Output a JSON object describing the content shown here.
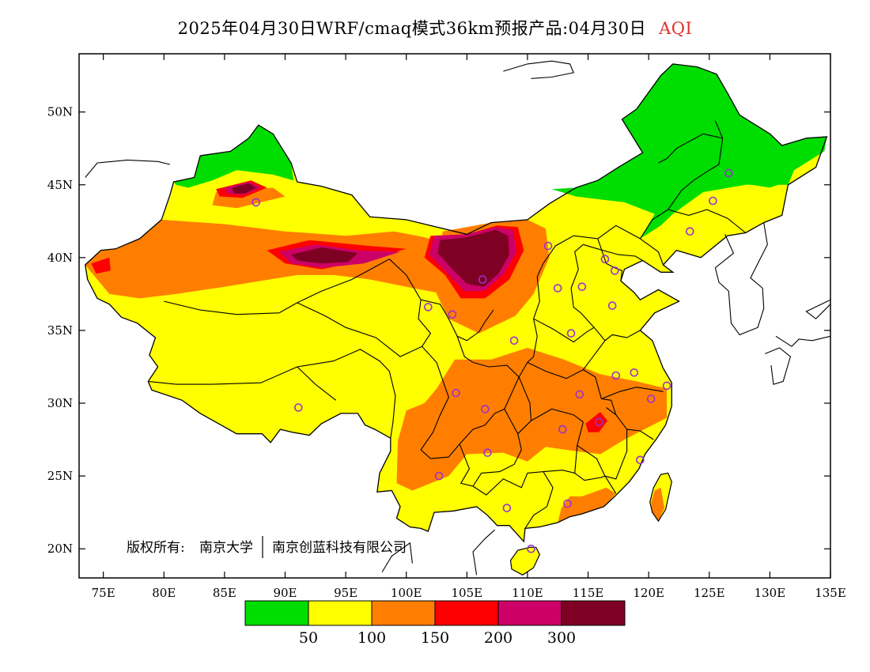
{
  "title": {
    "text": "2025年04月30日WRF/cmaq模式36km预报产品:04月30日",
    "variable": "AQI",
    "variable_color": "#e0302c"
  },
  "copyright": {
    "prefix": "版权所有:",
    "org1": "南京大学",
    "org2": "南京创蓝科技有限公司"
  },
  "axes": {
    "lon_range": [
      73,
      135
    ],
    "lat_range": [
      18,
      54
    ],
    "lat_ticks": [
      {
        "value": 20,
        "label": "20N"
      },
      {
        "value": 25,
        "label": "25N"
      },
      {
        "value": 30,
        "label": "30N"
      },
      {
        "value": 35,
        "label": "35N"
      },
      {
        "value": 40,
        "label": "40N"
      },
      {
        "value": 45,
        "label": "45N"
      },
      {
        "value": 50,
        "label": "50N"
      }
    ],
    "lon_ticks": [
      {
        "value": 75,
        "label": "75E"
      },
      {
        "value": 80,
        "label": "80E"
      },
      {
        "value": 85,
        "label": "85E"
      },
      {
        "value": 90,
        "label": "90E"
      },
      {
        "value": 95,
        "label": "95E"
      },
      {
        "value": 100,
        "label": "100E"
      },
      {
        "value": 105,
        "label": "105E"
      },
      {
        "value": 110,
        "label": "110E"
      },
      {
        "value": 115,
        "label": "115E"
      },
      {
        "value": 120,
        "label": "120E"
      },
      {
        "value": 125,
        "label": "125E"
      },
      {
        "value": 130,
        "label": "130E"
      },
      {
        "value": 135,
        "label": "135E"
      }
    ]
  },
  "legend": {
    "colors": [
      "#00dd00",
      "#ffff00",
      "#ff7e00",
      "#ff0000",
      "#cc0066",
      "#7e0023"
    ],
    "labels": [
      "50",
      "100",
      "150",
      "200",
      "300"
    ]
  },
  "colors": {
    "good": "#00dd00",
    "moderate": "#ffff00",
    "usg": "#ff7e00",
    "unhealthy": "#ff0000",
    "very_unhealthy": "#cc0066",
    "hazardous": "#7e0023",
    "station": "#9933cc"
  },
  "stations": [
    {
      "lon": 87.6,
      "lat": 43.8
    },
    {
      "lon": 91.1,
      "lat": 29.7
    },
    {
      "lon": 101.8,
      "lat": 36.6
    },
    {
      "lon": 103.8,
      "lat": 36.1
    },
    {
      "lon": 106.3,
      "lat": 38.5
    },
    {
      "lon": 111.7,
      "lat": 40.8
    },
    {
      "lon": 112.5,
      "lat": 37.9
    },
    {
      "lon": 114.5,
      "lat": 38.0
    },
    {
      "lon": 116.4,
      "lat": 39.9
    },
    {
      "lon": 117.2,
      "lat": 39.1
    },
    {
      "lon": 117.0,
      "lat": 36.7
    },
    {
      "lon": 113.6,
      "lat": 34.8
    },
    {
      "lon": 108.9,
      "lat": 34.3
    },
    {
      "lon": 104.1,
      "lat": 30.7
    },
    {
      "lon": 106.5,
      "lat": 29.6
    },
    {
      "lon": 114.3,
      "lat": 30.6
    },
    {
      "lon": 117.3,
      "lat": 31.9
    },
    {
      "lon": 118.8,
      "lat": 32.1
    },
    {
      "lon": 121.5,
      "lat": 31.2
    },
    {
      "lon": 120.2,
      "lat": 30.3
    },
    {
      "lon": 115.9,
      "lat": 28.7
    },
    {
      "lon": 112.9,
      "lat": 28.2
    },
    {
      "lon": 106.7,
      "lat": 26.6
    },
    {
      "lon": 102.7,
      "lat": 25.0
    },
    {
      "lon": 108.3,
      "lat": 22.8
    },
    {
      "lon": 113.3,
      "lat": 23.1
    },
    {
      "lon": 119.3,
      "lat": 26.1
    },
    {
      "lon": 110.3,
      "lat": 20.0
    },
    {
      "lon": 123.4,
      "lat": 41.8
    },
    {
      "lon": 125.3,
      "lat": 43.9
    },
    {
      "lon": 126.6,
      "lat": 45.8
    }
  ]
}
